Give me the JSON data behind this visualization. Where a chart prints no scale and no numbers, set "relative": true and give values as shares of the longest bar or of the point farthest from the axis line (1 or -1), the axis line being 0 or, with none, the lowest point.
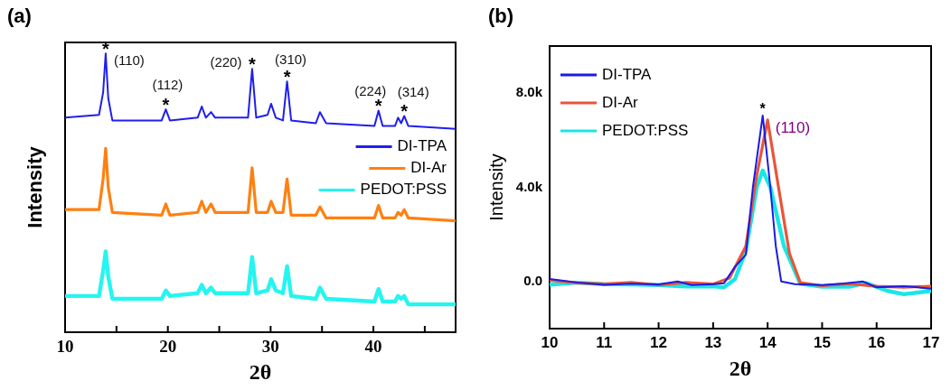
{
  "chart_data": [
    {
      "type": "line",
      "title": "(a)",
      "xlabel": "2θ",
      "ylabel": "Intensity",
      "relative": true,
      "legend": "right",
      "marker": "none",
      "line_style": "solid",
      "xlim": [
        10,
        48
      ],
      "xticks": [
        10,
        {
          "value": 15,
          "label": null
        },
        20,
        {
          "value": 25,
          "label": null
        },
        30,
        {
          "value": 35,
          "label": null
        },
        40,
        {
          "value": 45,
          "label": null
        }
      ],
      "x": [
        10,
        13.3,
        13.7,
        13.95,
        14.2,
        14.6,
        19.4,
        19.8,
        20.2,
        22.9,
        23.3,
        23.7,
        24.2,
        24.6,
        27.8,
        28.2,
        28.6,
        29.7,
        30.05,
        30.5,
        31.2,
        31.6,
        32.0,
        34.4,
        34.8,
        35.4,
        40.1,
        40.5,
        40.9,
        42.1,
        42.4,
        42.7,
        43.0,
        43.4,
        48
      ],
      "series": [
        {
          "name": "DI-TPA",
          "color": "#1f1fef",
          "values": [
            0.77,
            0.78,
            0.86,
            1.0,
            0.84,
            0.76,
            0.76,
            0.8,
            0.76,
            0.77,
            0.81,
            0.77,
            0.79,
            0.77,
            0.77,
            0.945,
            0.77,
            0.78,
            0.82,
            0.77,
            0.76,
            0.9,
            0.76,
            0.75,
            0.79,
            0.75,
            0.74,
            0.795,
            0.74,
            0.74,
            0.77,
            0.75,
            0.776,
            0.74,
            0.73
          ]
        },
        {
          "name": "DI-Ar",
          "color": "#ff8010",
          "values": [
            0.44,
            0.44,
            0.55,
            0.66,
            0.52,
            0.43,
            0.42,
            0.46,
            0.42,
            0.43,
            0.47,
            0.43,
            0.46,
            0.43,
            0.43,
            0.59,
            0.43,
            0.43,
            0.47,
            0.43,
            0.43,
            0.55,
            0.42,
            0.42,
            0.45,
            0.41,
            0.41,
            0.455,
            0.41,
            0.41,
            0.43,
            0.42,
            0.44,
            0.41,
            0.4
          ]
        },
        {
          "name": "PEDOT:PSS",
          "color": "#25f5f0",
          "values": [
            0.13,
            0.13,
            0.22,
            0.29,
            0.2,
            0.12,
            0.12,
            0.15,
            0.13,
            0.14,
            0.17,
            0.14,
            0.16,
            0.14,
            0.14,
            0.27,
            0.14,
            0.15,
            0.19,
            0.15,
            0.14,
            0.237,
            0.13,
            0.12,
            0.16,
            0.12,
            0.11,
            0.155,
            0.11,
            0.11,
            0.13,
            0.12,
            0.13,
            0.1,
            0.1
          ]
        }
      ],
      "annotations": [
        {
          "text": "*",
          "x": 13.95,
          "y": 1.0
        },
        {
          "text": "(110)",
          "x": 13.95,
          "y": 1.0
        },
        {
          "text": "*",
          "x": 19.8,
          "y": 0.8
        },
        {
          "text": "(112)",
          "x": 19.8,
          "y": 0.8
        },
        {
          "text": "*",
          "x": 28.2,
          "y": 0.945
        },
        {
          "text": "(220)",
          "x": 28.2,
          "y": 0.945
        },
        {
          "text": "*",
          "x": 31.6,
          "y": 0.9
        },
        {
          "text": "(310)",
          "x": 31.6,
          "y": 0.9
        },
        {
          "text": "*",
          "x": 40.5,
          "y": 0.795
        },
        {
          "text": "(224)",
          "x": 40.5,
          "y": 0.795
        },
        {
          "text": "*",
          "x": 43.0,
          "y": 0.776
        },
        {
          "text": "(314)",
          "x": 43.0,
          "y": 0.776
        }
      ]
    },
    {
      "type": "line",
      "title": "(b)",
      "xlabel": "2θ",
      "ylabel": "Intensity",
      "legend": "top left",
      "marker": "none",
      "line_style": "solid",
      "xlim": [
        10,
        17
      ],
      "xticks": [
        10,
        11,
        12,
        13,
        14,
        15,
        16,
        17
      ],
      "ylim": [
        -2000,
        10000
      ],
      "yticks": [
        {
          "value": 0,
          "label": "0.0"
        },
        {
          "value": 4000,
          "label": "4.0k"
        },
        {
          "value": 8000,
          "label": "8.0k"
        }
      ],
      "series": [
        {
          "name": "DI-TPA",
          "color": "#1a1ae6",
          "x": [
            10,
            10.5,
            11,
            11.5,
            12,
            12.35,
            12.6,
            13,
            13.2,
            13.4,
            13.6,
            13.73,
            13.91,
            14.05,
            14.15,
            14.25,
            14.5,
            15,
            15.4,
            15.75,
            16,
            16.5,
            17
          ],
          "values": [
            110,
            -40,
            -140,
            -90,
            -120,
            0,
            -150,
            -110,
            -70,
            620,
            1140,
            4000,
            7050,
            4000,
            1500,
            0,
            -110,
            -150,
            -80,
            0,
            -250,
            -200,
            -300
          ]
        },
        {
          "name": "DI-Ar",
          "color": "#e8553a",
          "x": [
            10,
            10.5,
            11,
            11.5,
            12,
            12.5,
            13,
            13.3,
            13.6,
            13.8,
            14.0,
            14.2,
            14.4,
            14.6,
            15,
            15.5,
            16,
            16.5,
            17
          ],
          "values": [
            60,
            -60,
            -110,
            -40,
            -150,
            -40,
            -110,
            150,
            1500,
            4500,
            6860,
            4000,
            1200,
            -50,
            -180,
            -100,
            -200,
            -240,
            -200
          ]
        },
        {
          "name": "PEDOT:PSS",
          "color": "#1ae6e6",
          "x": [
            10,
            10.5,
            11,
            11.5,
            12,
            12.5,
            13,
            13.2,
            13.4,
            13.6,
            13.8,
            13.91,
            14.05,
            14.3,
            14.6,
            15,
            15.5,
            15.8,
            16.2,
            16.5,
            17
          ],
          "values": [
            -130,
            -50,
            -110,
            -120,
            -150,
            -210,
            -200,
            -250,
            100,
            1300,
            4000,
            4720,
            4000,
            1500,
            -100,
            -220,
            -220,
            -60,
            -400,
            -540,
            -400
          ]
        }
      ],
      "annotations": [
        {
          "text": "*",
          "x": 13.91,
          "y": 7050
        },
        {
          "text": "(110)",
          "x": 13.91,
          "y": 7050
        }
      ]
    }
  ]
}
